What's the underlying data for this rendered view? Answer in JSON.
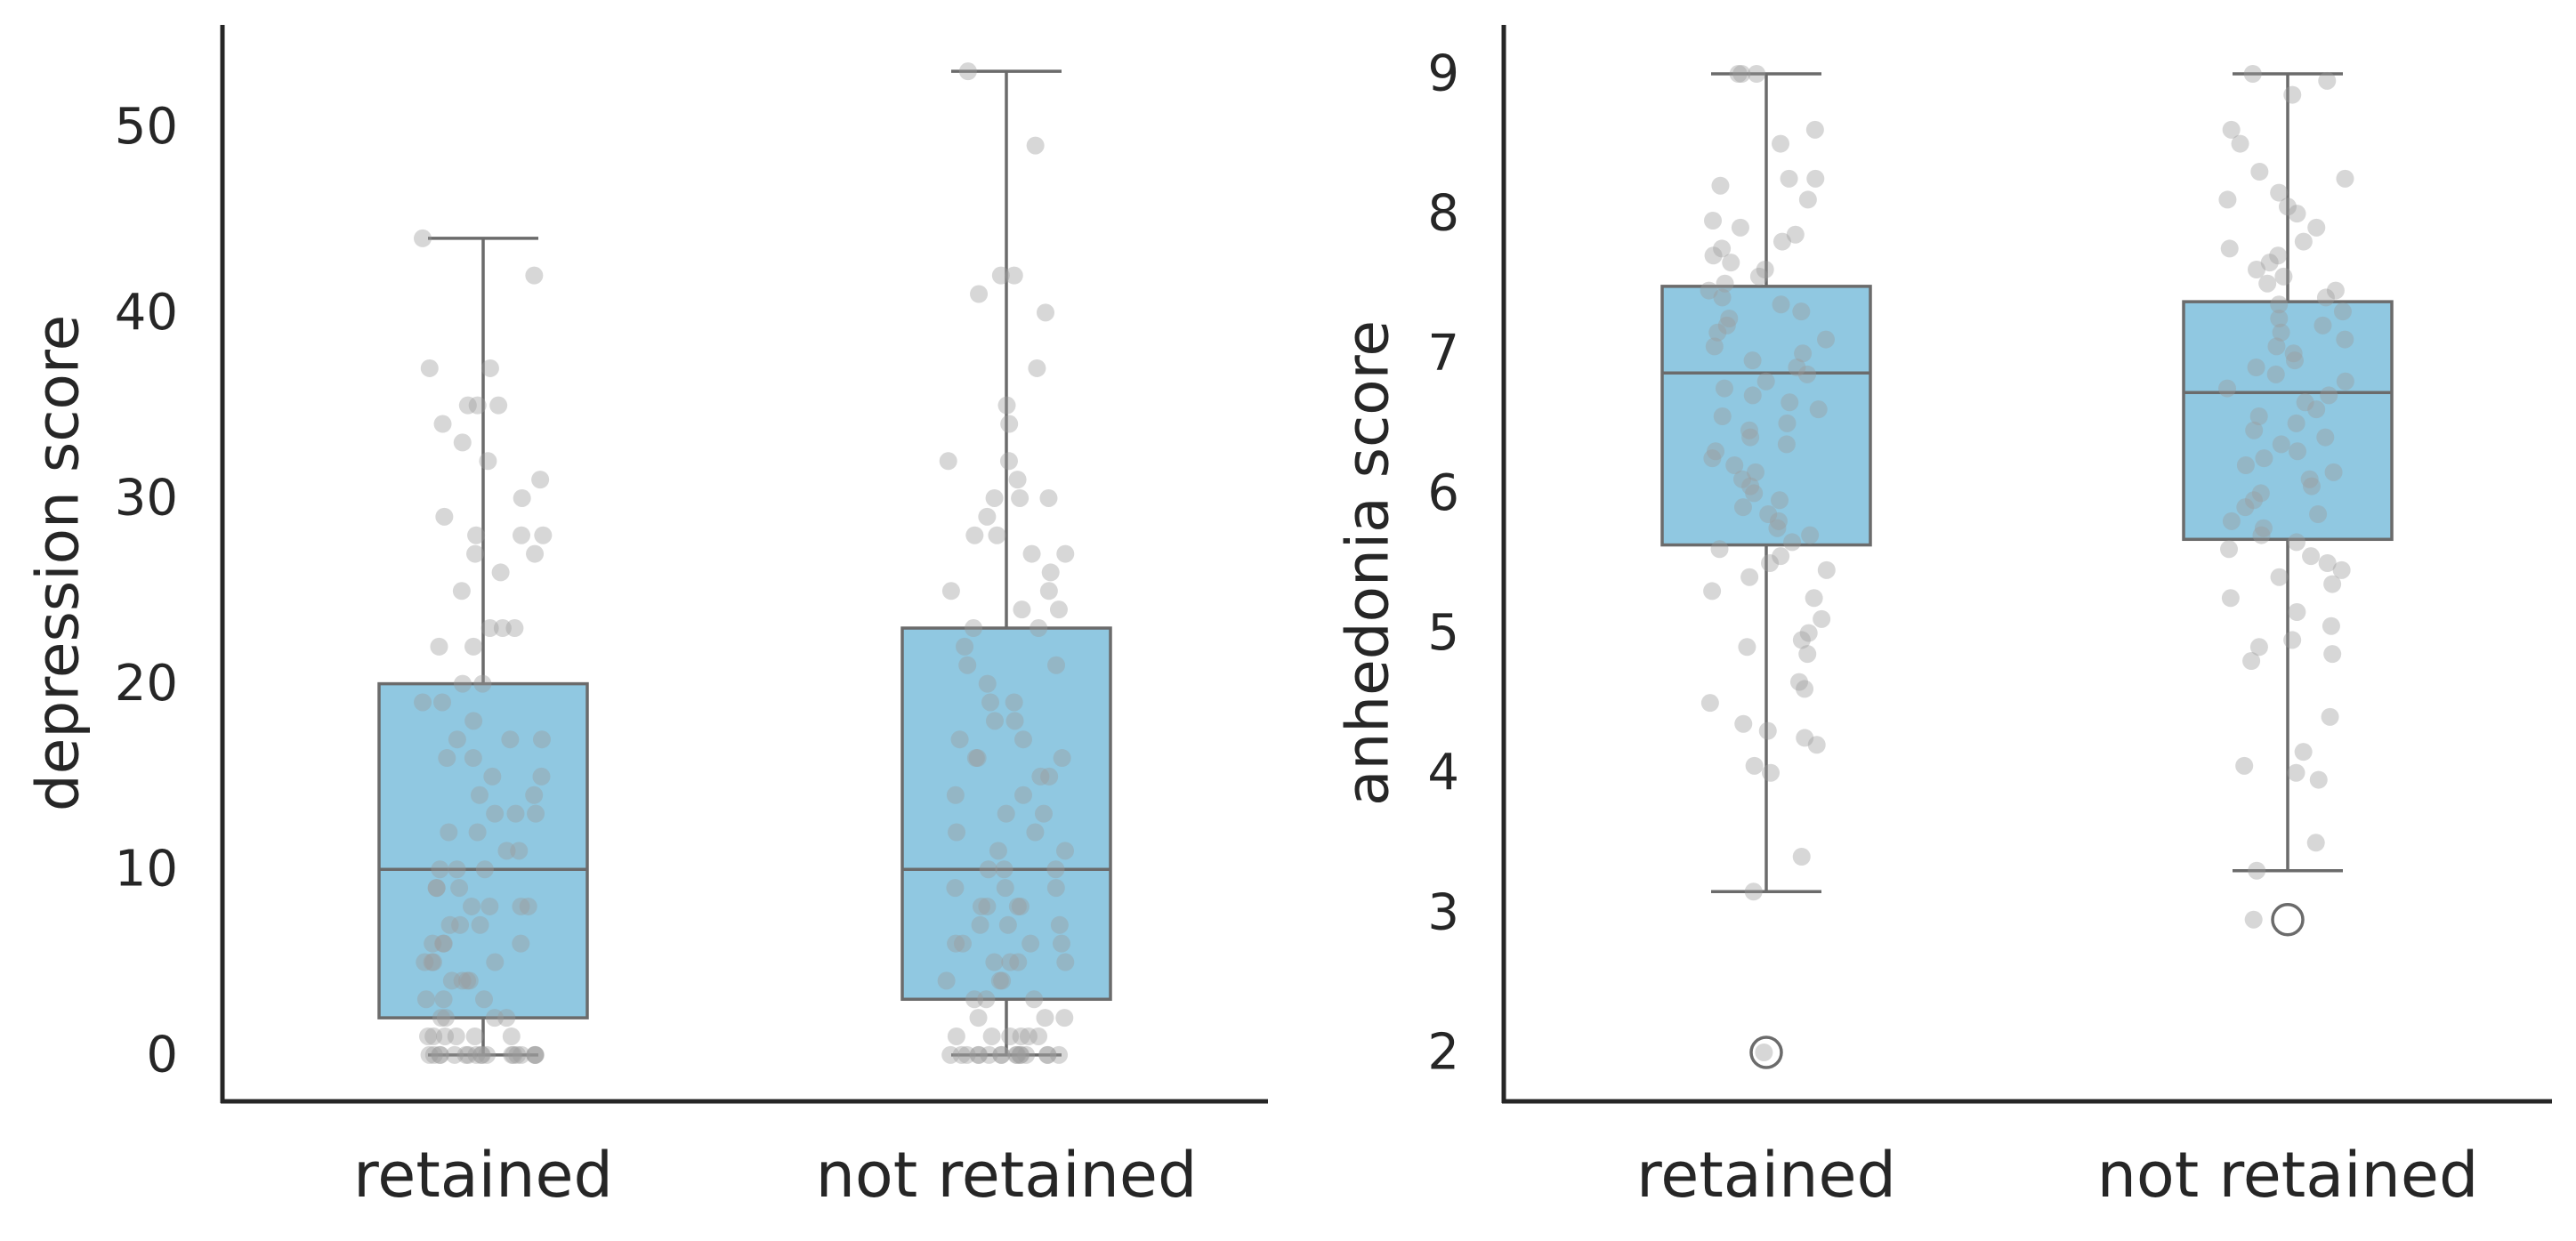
{
  "style": {
    "box_fill": "#90c8e1",
    "line_color": "#6b6b6b",
    "axis_color": "#262626",
    "point_color": "#9a9a9a",
    "outlier_color": "#6b6b6b"
  },
  "chart_data": [
    {
      "type": "box",
      "title": "",
      "xlabel": "",
      "ylabel": "depression score",
      "categories": [
        "retained",
        "not retained"
      ],
      "ylim": [
        -2.5,
        55.5
      ],
      "yticks": [
        0,
        10,
        20,
        30,
        40,
        50
      ],
      "grid": false,
      "boxes": [
        {
          "category": "retained",
          "min": 0,
          "q1": 2,
          "median": 10,
          "q3": 20,
          "max": 44,
          "outliers": []
        },
        {
          "category": "not retained",
          "min": 0,
          "q1": 3,
          "median": 10,
          "q3": 23,
          "max": 53,
          "outliers": []
        }
      ],
      "points": [
        {
          "category": "retained",
          "values": [
            44,
            42,
            37,
            37,
            35,
            35,
            35,
            34,
            33,
            32,
            31,
            30,
            29,
            28,
            28,
            28,
            27,
            27,
            26,
            25,
            23,
            23,
            23,
            22,
            22,
            20,
            20,
            19,
            19,
            18,
            17,
            17,
            17,
            16,
            16,
            15,
            15,
            14,
            14,
            13,
            13,
            13,
            12,
            12,
            11,
            11,
            10,
            10,
            10,
            9,
            9,
            9,
            8,
            8,
            8,
            8,
            7,
            7,
            7,
            6,
            6,
            6,
            6,
            5,
            5,
            5,
            5,
            4,
            4,
            4,
            4,
            3,
            3,
            3,
            2,
            2,
            2,
            2,
            1,
            1,
            1,
            1,
            1,
            1,
            0,
            0,
            0,
            0,
            0,
            0,
            0,
            0,
            0,
            0,
            0,
            0,
            0,
            0,
            0,
            0,
            0,
            0
          ]
        },
        {
          "category": "not retained",
          "values": [
            53,
            49,
            42,
            42,
            41,
            40,
            37,
            35,
            34,
            32,
            32,
            31,
            30,
            30,
            30,
            29,
            28,
            28,
            27,
            27,
            26,
            25,
            25,
            24,
            24,
            23,
            23,
            22,
            21,
            21,
            20,
            19,
            19,
            18,
            18,
            17,
            17,
            16,
            16,
            16,
            15,
            15,
            14,
            14,
            13,
            13,
            12,
            12,
            11,
            11,
            10,
            10,
            10,
            9,
            9,
            9,
            8,
            8,
            8,
            8,
            7,
            7,
            7,
            6,
            6,
            6,
            6,
            5,
            5,
            5,
            5,
            4,
            4,
            4,
            3,
            3,
            3,
            2,
            2,
            2,
            1,
            1,
            1,
            1,
            1,
            1,
            0,
            0,
            0,
            0,
            0,
            0,
            0,
            0,
            0,
            0,
            0,
            0,
            0,
            0,
            0,
            0
          ]
        }
      ]
    },
    {
      "type": "box",
      "title": "",
      "xlabel": "",
      "ylabel": "anhedonia score",
      "categories": [
        "retained",
        "not retained"
      ],
      "ylim": [
        1.65,
        9.35
      ],
      "yticks": [
        2,
        3,
        4,
        5,
        6,
        7,
        8,
        9
      ],
      "grid": false,
      "boxes": [
        {
          "category": "retained",
          "min": 3.15,
          "q1": 5.63,
          "median": 6.86,
          "q3": 7.48,
          "max": 9.0,
          "outliers": [
            2.0
          ]
        },
        {
          "category": "not retained",
          "min": 3.3,
          "q1": 5.67,
          "median": 6.72,
          "q3": 7.37,
          "max": 9.0,
          "outliers": [
            2.95
          ]
        }
      ],
      "points": [
        {
          "category": "retained",
          "values": [
            9.0,
            9.0,
            9.0,
            8.6,
            8.5,
            8.25,
            8.25,
            8.2,
            8.1,
            7.95,
            7.9,
            7.85,
            7.8,
            7.75,
            7.7,
            7.65,
            7.6,
            7.55,
            7.5,
            7.45,
            7.4,
            7.35,
            7.3,
            7.25,
            7.2,
            7.15,
            7.1,
            7.05,
            7.0,
            6.95,
            6.9,
            6.85,
            6.8,
            6.75,
            6.7,
            6.65,
            6.6,
            6.55,
            6.5,
            6.45,
            6.4,
            6.35,
            6.3,
            6.25,
            6.2,
            6.15,
            6.1,
            6.05,
            6.0,
            5.95,
            5.9,
            5.85,
            5.8,
            5.75,
            5.7,
            5.65,
            5.6,
            5.55,
            5.5,
            5.45,
            5.4,
            5.3,
            5.25,
            5.1,
            5.0,
            4.95,
            4.9,
            4.85,
            4.65,
            4.6,
            4.5,
            4.35,
            4.3,
            4.25,
            4.2,
            4.05,
            4.0,
            3.4,
            3.15,
            2.0
          ]
        },
        {
          "category": "not retained",
          "values": [
            9.0,
            8.95,
            8.85,
            8.6,
            8.5,
            8.3,
            8.25,
            8.15,
            8.1,
            8.05,
            8.0,
            7.9,
            7.8,
            7.75,
            7.7,
            7.65,
            7.6,
            7.55,
            7.5,
            7.45,
            7.4,
            7.35,
            7.3,
            7.25,
            7.2,
            7.15,
            7.1,
            7.05,
            7.0,
            6.95,
            6.9,
            6.85,
            6.8,
            6.75,
            6.7,
            6.65,
            6.6,
            6.55,
            6.5,
            6.45,
            6.4,
            6.35,
            6.3,
            6.25,
            6.2,
            6.15,
            6.1,
            6.05,
            6.0,
            5.95,
            5.9,
            5.85,
            5.8,
            5.75,
            5.7,
            5.65,
            5.6,
            5.55,
            5.5,
            5.45,
            5.4,
            5.35,
            5.25,
            5.15,
            5.05,
            4.95,
            4.9,
            4.85,
            4.8,
            4.4,
            4.15,
            4.05,
            4.0,
            3.95,
            3.5,
            3.3,
            2.95
          ]
        }
      ]
    }
  ]
}
